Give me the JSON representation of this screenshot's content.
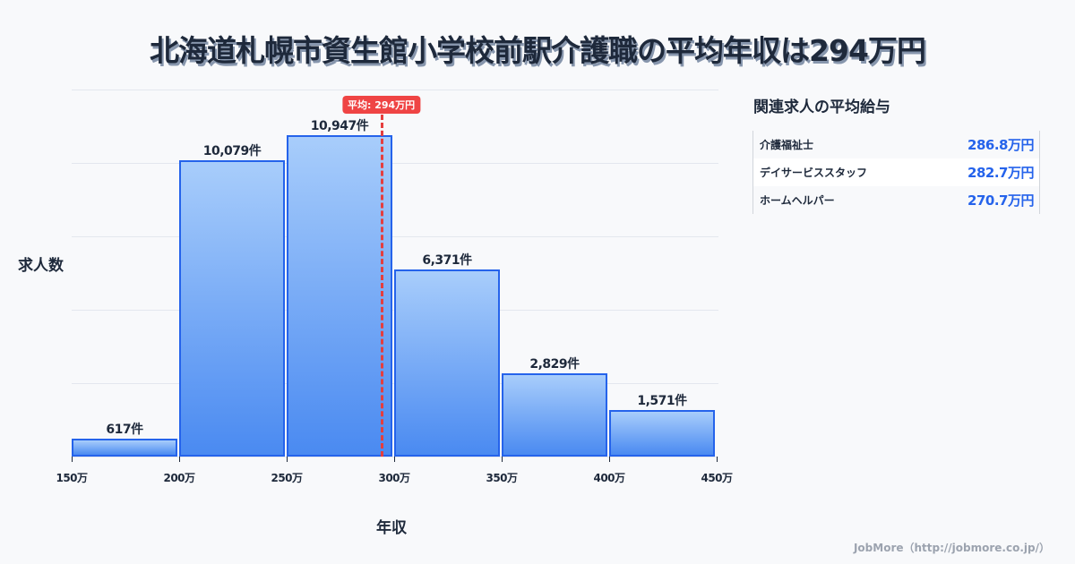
{
  "title": "北海道札幌市資生館小学校前駅介護職の平均年収は294万円",
  "axis": {
    "ylabel": "求人数",
    "xlabel": "年収"
  },
  "average": {
    "label": "平均: 294万円",
    "value": 294,
    "color": "#ef4444"
  },
  "ticks": [
    "150万",
    "200万",
    "250万",
    "300万",
    "350万",
    "400万",
    "450万"
  ],
  "bars": [
    {
      "range": "150万-200万",
      "value": 617,
      "label": "617件"
    },
    {
      "range": "200万-250万",
      "value": 10079,
      "label": "10,079件"
    },
    {
      "range": "250万-300万",
      "value": 10947,
      "label": "10,947件"
    },
    {
      "range": "300万-350万",
      "value": 6371,
      "label": "6,371件"
    },
    {
      "range": "350万-400万",
      "value": 2829,
      "label": "2,829件"
    },
    {
      "range": "400万-450万",
      "value": 1571,
      "label": "1,571件"
    }
  ],
  "side_panel": {
    "title": "関連求人の平均給与",
    "rows": [
      {
        "name": "介護福祉士",
        "value": "286.8万円"
      },
      {
        "name": "デイサービススタッフ",
        "value": "282.7万円"
      },
      {
        "name": "ホームヘルパー",
        "value": "270.7万円"
      }
    ]
  },
  "footer": "JobMore（http://jobmore.co.jp/）",
  "colors": {
    "bar_border": "#2563eb",
    "bar_top": "#a8cdfb",
    "bar_bottom": "#4a8af1",
    "value_text": "#2563eb"
  },
  "chart_data": {
    "type": "bar",
    "title": "北海道札幌市資生館小学校前駅介護職の平均年収は294万円",
    "xlabel": "年収",
    "ylabel": "求人数",
    "categories": [
      "150万-200万",
      "200万-250万",
      "250万-300万",
      "300万-350万",
      "350万-400万",
      "400万-450万"
    ],
    "values": [
      617,
      10079,
      10947,
      6371,
      2829,
      1571
    ],
    "x_tick_labels": [
      "150万",
      "200万",
      "250万",
      "300万",
      "350万",
      "400万",
      "450万"
    ],
    "xlim": [
      150,
      450
    ],
    "ylim": [
      0,
      12500
    ],
    "grid": true,
    "annotations": [
      {
        "type": "vline",
        "x": 294,
        "label": "平均: 294万円",
        "color": "#ef4444",
        "style": "dashed"
      }
    ],
    "data_labels": [
      "617件",
      "10,079件",
      "10,947件",
      "6,371件",
      "2,829件",
      "1,571件"
    ]
  }
}
